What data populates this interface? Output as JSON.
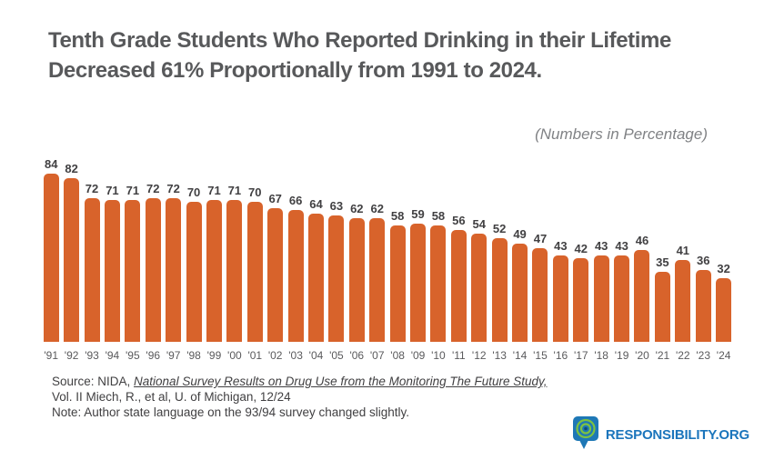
{
  "title": "Tenth Grade Students Who Reported Drinking in their Lifetime Decreased 61% Proportionally from 1991 to 2024.",
  "subtitle": "(Numbers in Percentage)",
  "chart_data": {
    "type": "bar",
    "title": "Tenth Grade Students Who Reported Drinking in their Lifetime Decreased 61% Proportionally from 1991 to 2024.",
    "subtitle": "(Numbers in Percentage)",
    "categories": [
      "'91",
      "'92",
      "'93",
      "'94",
      "'95",
      "'96",
      "'97",
      "'98",
      "'99",
      "'00",
      "'01",
      "'02",
      "'03",
      "'04",
      "'05",
      "'06",
      "'07",
      "'08",
      "'09",
      "'10",
      "'11",
      "'12",
      "'13",
      "'14",
      "'15",
      "'16",
      "'17",
      "'18",
      "'19",
      "'20",
      "'21",
      "'22",
      "'23",
      "'24"
    ],
    "values": [
      84,
      82,
      72,
      71,
      71,
      72,
      72,
      70,
      71,
      71,
      70,
      67,
      66,
      64,
      63,
      62,
      62,
      58,
      59,
      58,
      56,
      54,
      52,
      49,
      47,
      43,
      42,
      43,
      43,
      46,
      35,
      41,
      36,
      32
    ],
    "xlabel": "",
    "ylabel": "",
    "ylim": [
      0,
      90
    ],
    "grid": false,
    "legend": false,
    "value_labels_shown": true,
    "bar_color": "#D8632B",
    "value_label_color": "#414042",
    "tick_label_color": "#5A5A5C"
  },
  "source": {
    "prefix": "Source: NIDA, ",
    "cite": "National Survey Results on Drug Use from the Monitoring The Future Study,",
    "line2": "Vol. II Miech, R., et al, U. of Michigan, 12/24",
    "note": "Note: Author state language on the 93/94 survey changed slightly."
  },
  "logo": {
    "text": "RESPONSIBILITY.ORG",
    "text_color": "#1B75BC",
    "bubble_color": "#1E78B6",
    "ring_color": "#7DC242"
  },
  "colors": {
    "background": "#FFFFFF",
    "title": "#58595B",
    "subtitle": "#808285",
    "bar": "#D8632B",
    "source_text": "#414042"
  }
}
